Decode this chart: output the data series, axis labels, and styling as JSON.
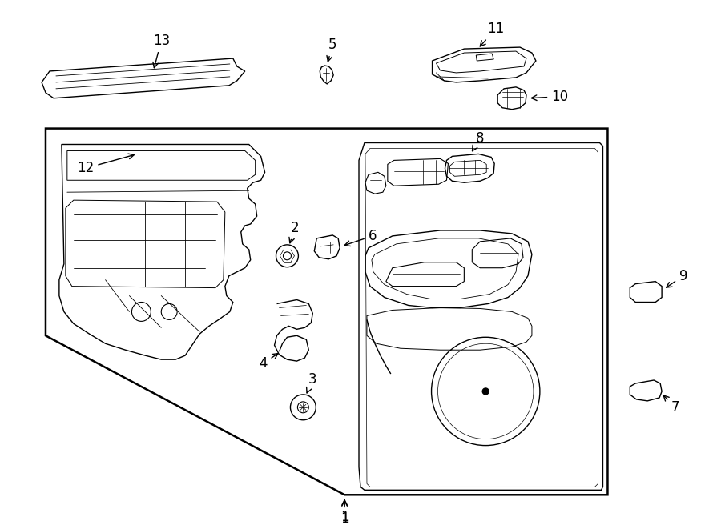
{
  "background_color": "#ffffff",
  "line_color": "#000000",
  "fig_width": 9.0,
  "fig_height": 6.61,
  "dpi": 100,
  "label_fontsize": 12,
  "lw": 1.0
}
